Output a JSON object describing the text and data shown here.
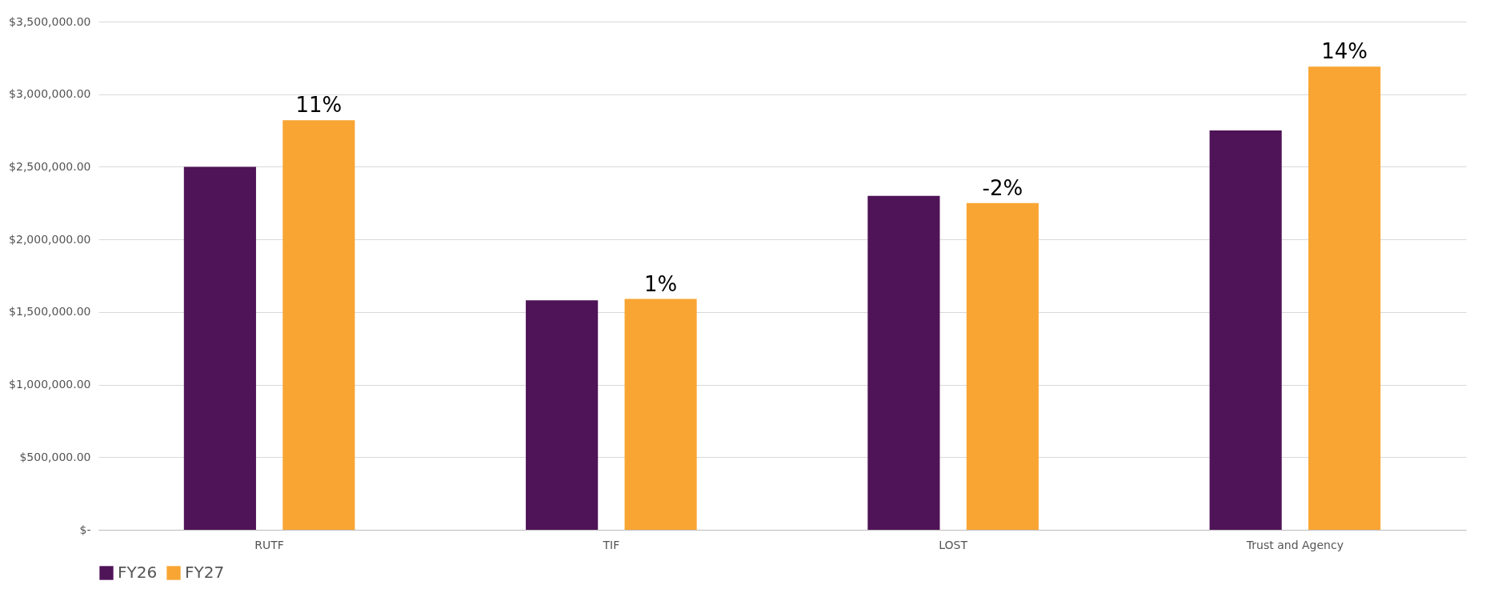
{
  "chart_data": {
    "type": "bar",
    "categories": [
      "RUTF",
      "TIF",
      "LOST",
      "Trust and Agency"
    ],
    "series": [
      {
        "name": "FY26",
        "color": "#4f1357",
        "values": [
          2500000,
          1580000,
          2300000,
          2750000
        ]
      },
      {
        "name": "FY27",
        "color": "#f9a533",
        "values": [
          2820000,
          1590000,
          2250000,
          3190000
        ]
      }
    ],
    "annotations": [
      "11%",
      "1%",
      "-2%",
      "14%"
    ],
    "ylim": [
      0,
      3500000
    ],
    "yticks": [
      {
        "value": 0,
        "label": "$-"
      },
      {
        "value": 500000,
        "label": "$500,000.00"
      },
      {
        "value": 1000000,
        "label": "$1,000,000.00"
      },
      {
        "value": 1500000,
        "label": "$1,500,000.00"
      },
      {
        "value": 2000000,
        "label": "$2,000,000.00"
      },
      {
        "value": 2500000,
        "label": "$2,500,000.00"
      },
      {
        "value": 3000000,
        "label": "$3,000,000.00"
      },
      {
        "value": 3500000,
        "label": "$3,500,000.00"
      }
    ],
    "grid": "y",
    "legend": "bottom"
  }
}
